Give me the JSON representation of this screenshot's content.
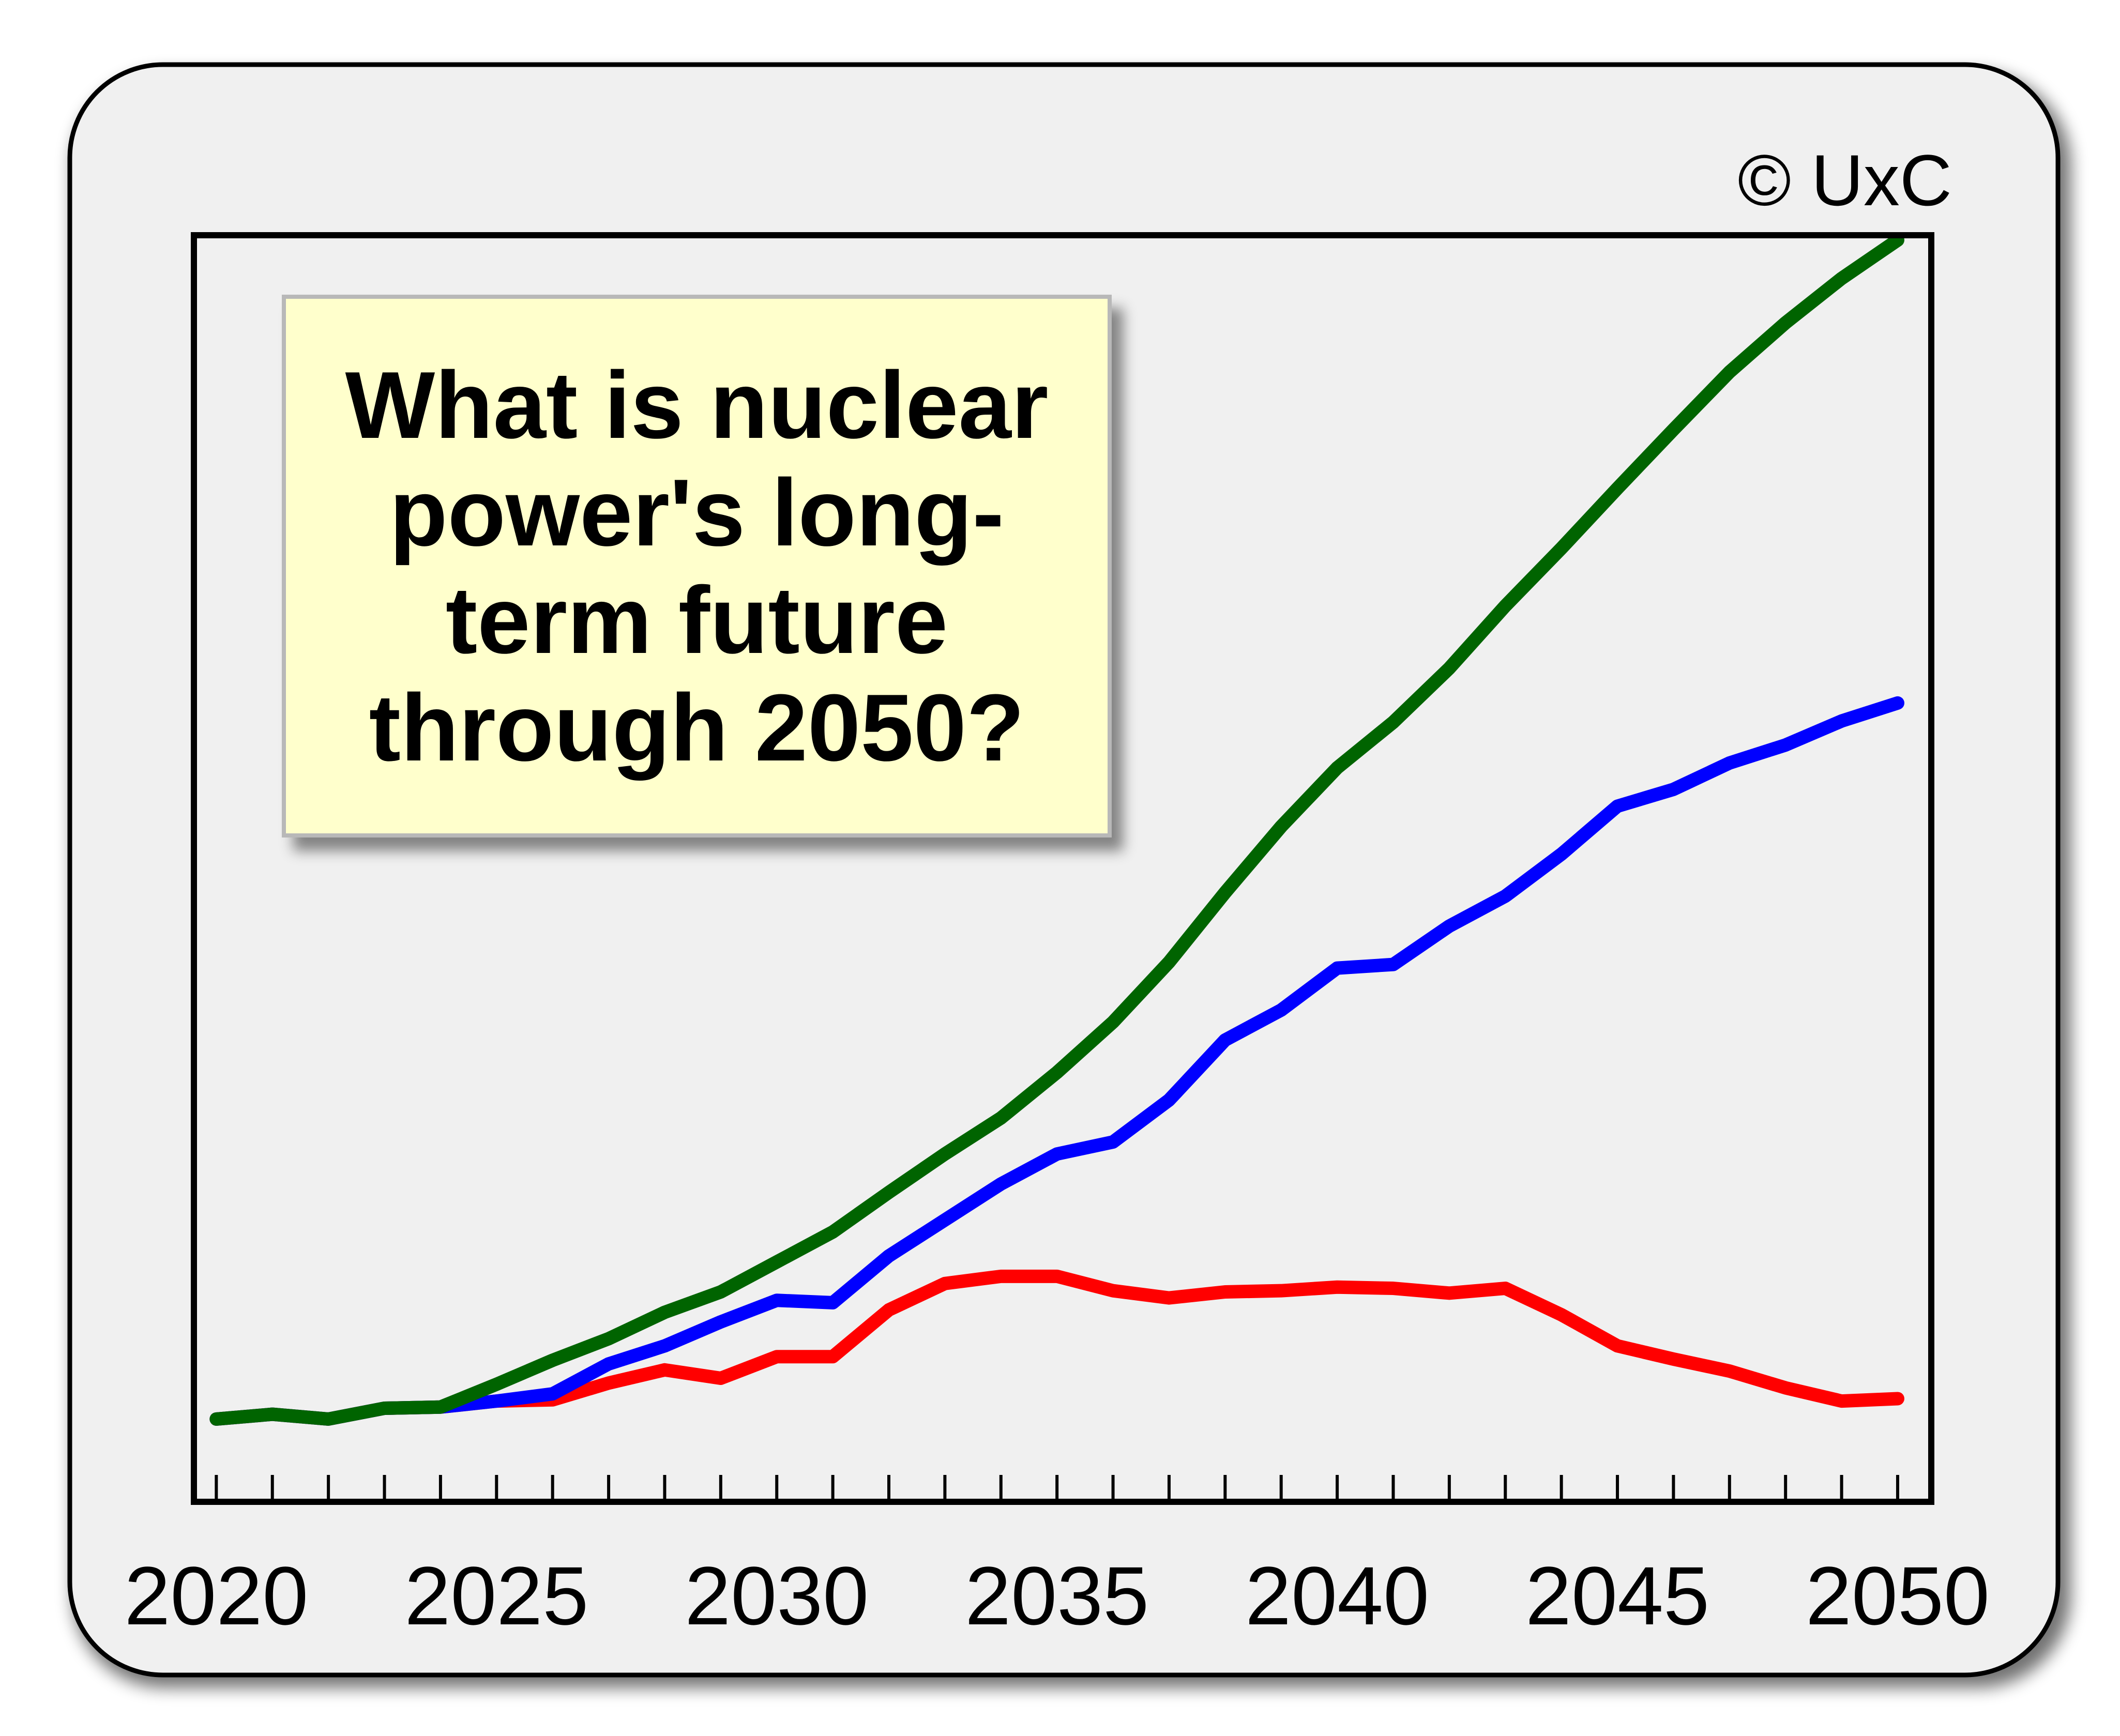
{
  "copyright": "© UxC",
  "annotation": "What is nuclear power's long-term future through 2050?",
  "chart_data": {
    "type": "line",
    "title": "",
    "xlabel": "",
    "ylabel": "",
    "xlim": [
      2019.6,
      2050.6
    ],
    "ylim": [
      0,
      100
    ],
    "grid": false,
    "x": [
      2020,
      2021,
      2022,
      2023,
      2024,
      2025,
      2026,
      2027,
      2028,
      2029,
      2030,
      2031,
      2032,
      2033,
      2034,
      2035,
      2036,
      2037,
      2038,
      2039,
      2040,
      2041,
      2042,
      2043,
      2044,
      2045,
      2046,
      2047,
      2048,
      2049,
      2050
    ],
    "x_ticks": [
      2020,
      2025,
      2030,
      2035,
      2040,
      2045,
      2050
    ],
    "series": [
      {
        "color": "#ff0000",
        "values": [
          6.9,
          7.3,
          6.9,
          7.8,
          7.9,
          8.4,
          8.5,
          9.9,
          11.0,
          10.3,
          12.1,
          12.1,
          16.0,
          18.2,
          18.8,
          18.8,
          17.6,
          17.0,
          17.5,
          17.6,
          17.9,
          17.8,
          17.4,
          17.8,
          15.6,
          13.0,
          11.9,
          10.9,
          9.5,
          8.4,
          8.6
        ]
      },
      {
        "color": "#0000ff",
        "values": [
          6.9,
          7.3,
          6.9,
          7.8,
          7.9,
          8.4,
          9.0,
          11.5,
          13.0,
          15.0,
          16.8,
          16.6,
          20.5,
          23.5,
          26.5,
          29.0,
          30.0,
          33.5,
          38.5,
          41.0,
          44.5,
          44.8,
          48.0,
          50.5,
          54.0,
          58.0,
          59.4,
          61.6,
          63.1,
          65.1,
          66.6
        ]
      },
      {
        "color": "#006400",
        "values": [
          6.9,
          7.3,
          6.9,
          7.8,
          7.9,
          9.8,
          11.8,
          13.6,
          15.8,
          17.5,
          20.0,
          22.5,
          25.8,
          29.0,
          32.0,
          35.8,
          40.0,
          45.0,
          50.8,
          56.3,
          61.2,
          65.0,
          69.5,
          74.7,
          79.5,
          84.5,
          89.4,
          94.2,
          98.3,
          102.0,
          105.2
        ]
      }
    ]
  }
}
